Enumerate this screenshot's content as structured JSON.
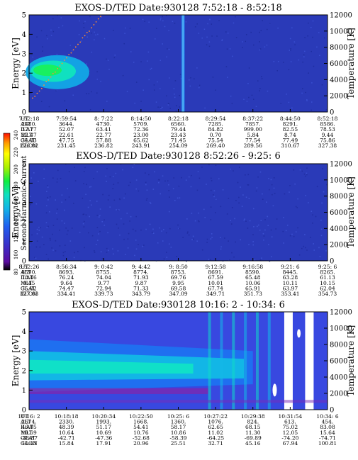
{
  "chart_data": [
    {
      "type": "heatmap",
      "title": "EXOS-D/TED   Date:930128  7:52:18 - 8:52:18",
      "ylabel": "Energy [eV]",
      "y2label": "Temperature [K]",
      "ylim": [
        0,
        5
      ],
      "y2lim": [
        0,
        12000
      ],
      "yticks": [
        "0",
        "1",
        "2",
        "3",
        "4",
        "5"
      ],
      "y2ticks": [
        "0",
        "2000",
        "4000",
        "6000",
        "8000",
        "10000",
        "12000"
      ],
      "row_labels": [
        "UT",
        "ALT",
        "ILAT",
        "MLT",
        "GLAT",
        "GLON"
      ],
      "columns": [
        [
          "7:52:18",
          "2480.",
          "37.77",
          "22.47",
          "34.33",
          "226.82"
        ],
        [
          "7:59:54",
          "3644.",
          "52.07",
          "22.61",
          "47.75",
          "231.45"
        ],
        [
          "8: 7:22",
          "4730.",
          "63.41",
          "22.77",
          "57.88",
          "236.82"
        ],
        [
          "8:14:50",
          "5709.",
          "72.36",
          "23.00",
          "65.62",
          "243.91"
        ],
        [
          "8:22:18",
          "6560.",
          "79.44",
          "23.43",
          "71.45",
          "254.09"
        ],
        [
          "8:29:54",
          "7285.",
          "84.82",
          "0.70",
          "75.54",
          "269.40"
        ],
        [
          "8:37:22",
          "7857.",
          "999.00",
          "5.84",
          "77.54",
          "289.56"
        ],
        [
          "8:44:50",
          "8291.",
          "82.55",
          "8.74",
          "77.49",
          "310.67"
        ],
        [
          "8:52:18",
          "8586.",
          "78.53",
          "9.44",
          "75.86",
          "327.38"
        ]
      ]
    },
    {
      "type": "heatmap",
      "title": "EXOS-D/TED   Date:930128  8:52:26 - 9:25: 6",
      "ylabel": "Energy [eV]",
      "y2label": "Temperature [K]",
      "ylim": [
        0,
        5
      ],
      "y2lim": [
        0,
        12000
      ],
      "yticks": [
        "0",
        "1",
        "2",
        "3",
        "4",
        "5"
      ],
      "y2ticks": [
        "0",
        "2000",
        "4000",
        "6000",
        "8000",
        "10000",
        "12000"
      ],
      "row_labels": [
        "UT",
        "ALT",
        "ILAT",
        "MLT",
        "GLAT",
        "GLON"
      ],
      "columns": [
        [
          "8:52:26",
          "8590.",
          "78.46",
          "9.45",
          "75.82",
          "327.63"
        ],
        [
          "8:56:34",
          "8693.",
          "76.24",
          "9.64",
          "74.47",
          "334.41"
        ],
        [
          "9: 0:42",
          "8755.",
          "74.04",
          "9.77",
          "72.94",
          "339.73"
        ],
        [
          "9: 4:42",
          "8774.",
          "71.93",
          "9.87",
          "71.33",
          "343.79"
        ],
        [
          "9: 8:50",
          "8753.",
          "69.76",
          "9.95",
          "69.58",
          "347.09"
        ],
        [
          "9:12:58",
          "8691.",
          "67.59",
          "10.01",
          "67.74",
          "349.71"
        ],
        [
          "9:16:58",
          "8590.",
          "65.48",
          "10.06",
          "65.91",
          "351.73"
        ],
        [
          "9:21: 6",
          "8445.",
          "63.28",
          "10.11",
          "63.97",
          "353.41"
        ],
        [
          "9:25: 6",
          "8265.",
          "61.13",
          "10.15",
          "62.04",
          "354.73"
        ]
      ]
    },
    {
      "type": "heatmap",
      "title": "EXOS-D/TED   Date:930128  10:16: 2 - 10:34: 6",
      "ylabel": "Energy [eV]",
      "y2label": "Temperature [K]",
      "ylim": [
        0,
        5
      ],
      "y2lim": [
        0,
        12000
      ],
      "yticks": [
        "0",
        "1",
        "2",
        "3",
        "4",
        "5"
      ],
      "y2ticks": [
        "0",
        "2000",
        "4000",
        "6000",
        "8000",
        "10000",
        "12000"
      ],
      "row_labels": [
        "UT",
        "ALT",
        "ILAT",
        "MLT",
        "GLAT",
        "GLON"
      ],
      "columns": [
        [
          "10:16: 2",
          "2674.",
          "46.05",
          "10.59",
          "-38.87",
          "14.43"
        ],
        [
          "10:18:18",
          "2330.",
          "48.39",
          "10.64",
          "-42.71",
          "15.84"
        ],
        [
          "10:20:34",
          "1993.",
          "51.17",
          "10.69",
          "-47.36",
          "17.91"
        ],
        [
          "10:22:50",
          "1668.",
          "54.41",
          "10.76",
          "-52.68",
          "20.96"
        ],
        [
          "10:25: 6",
          "1360.",
          "58.17",
          "10.86",
          "-58.39",
          "25.51"
        ],
        [
          "10:27:22",
          "1076.",
          "62.65",
          "11.02",
          "-64.25",
          "32.71"
        ],
        [
          "10:29:38",
          "824.",
          "68.15",
          "11.30",
          "-69.89",
          "45.16"
        ],
        [
          "10:31:54",
          "613.",
          "75.02",
          "12.05",
          "-74.20",
          "67.94"
        ],
        [
          "10:34: 6",
          "454.",
          "83.08",
          "15.64",
          "-74.71",
          "100.81"
        ]
      ]
    }
  ],
  "colorbar": {
    "label": "Second Harmonic Current",
    "ticks": [
      "80",
      "100",
      "120",
      "140",
      "160",
      "180",
      "200",
      "220",
      "240"
    ]
  }
}
